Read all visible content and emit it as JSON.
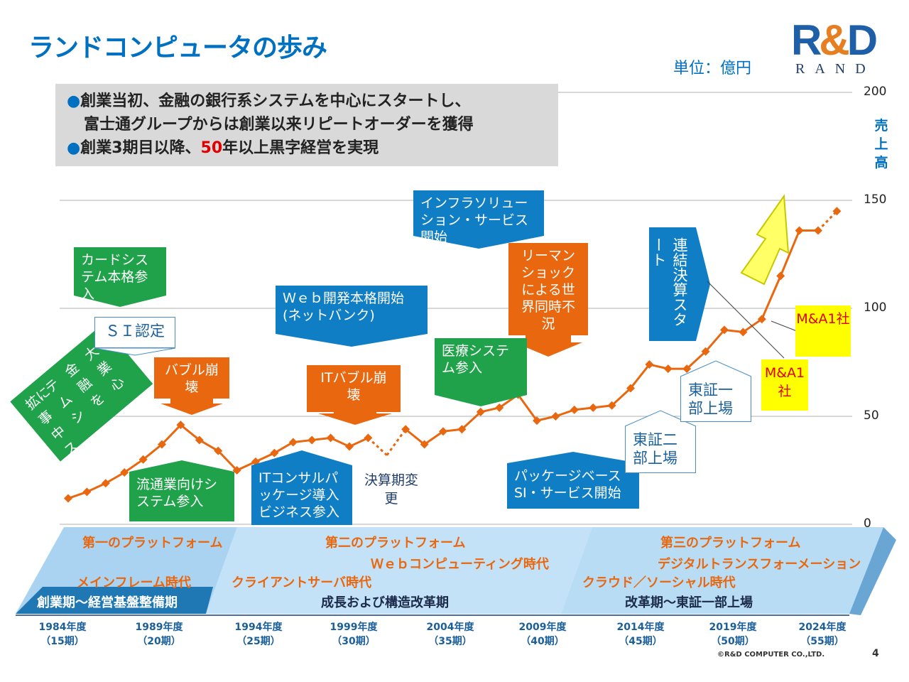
{
  "slide": {
    "title": "ランドコンピュータの歩み",
    "unit": "単位：億円",
    "logo_text": "R&D",
    "logo_sub": "RAND",
    "summary": {
      "line1": "創業当初、金融の銀行系システムを中心にスタートし、",
      "line2": "富士通グループからは創業以来リピートオーダーを獲得",
      "line3a": "創業3期目以降、",
      "line3b": "50",
      "line3c": "年以上黒字経営を実現"
    },
    "ylabel": "売上高",
    "copyright": "©R&D COMPUTER CO.,LTD.",
    "page": "4"
  },
  "callouts": {
    "finance": "拡に テ 金 大 事 ム 融 業 中 シ を 心 ス",
    "card": "カードシステム本格参入",
    "si": "ＳＩ認定",
    "bubble": "バブル崩壊",
    "retail": "流通業向けシステム参入",
    "web": "Ｗｅｂ開発本格開始(ネットバンク)",
    "it_bubble": "ITバブル崩壊",
    "consult": "ITコンサルパッケージ導入ビジネス参入",
    "fiscal": "決算期変更",
    "infra": "インフラソリューション・サービス開始",
    "medical": "医療システム参入",
    "lehman": "リーマンショックによる世界同時不況",
    "package": "パッケージベースSI・サービス開始",
    "consolidated": "連結決算スタート",
    "tse2": "東証二部上場",
    "tse1": "東証一部上場",
    "ma1": "M&A1社",
    "ma2": "M&A1社"
  },
  "eras": {
    "p1": "第一のプラットフォーム",
    "p1_sub": "メインフレーム時代",
    "p1_stage": "創業期～経営基盤整備期",
    "p2": "第二のプラットフォーム",
    "p2_web": "Ｗｅｂコンピューティング時代",
    "p2_sub": "クライアントサーバ時代",
    "p2_stage": "成長および構造改革期",
    "p3": "第三のプラットフォーム",
    "p3_dx": "デジタルトランスフォーメーション",
    "p3_sub": "クラウド／ソーシャル時代",
    "p3_stage": "改革期～東証一部上場"
  },
  "x_ticks": [
    {
      "year": "1984年度",
      "term": "（15期）"
    },
    {
      "year": "1989年度",
      "term": "（20期）"
    },
    {
      "year": "1994年度",
      "term": "（25期）"
    },
    {
      "year": "1999年度",
      "term": "（30期）"
    },
    {
      "year": "2004年度",
      "term": "（35期）"
    },
    {
      "year": "2009年度",
      "term": "（40期）"
    },
    {
      "year": "2014年度",
      "term": "（45期）"
    },
    {
      "year": "2019年度",
      "term": "（50期）"
    },
    {
      "year": "2024年度",
      "term": "（55期）"
    }
  ],
  "colors": {
    "line": "#e8670f",
    "accent": "#0070c0",
    "green": "#1fa24a",
    "orange": "#e8670f"
  },
  "chart_data": {
    "type": "line",
    "ylabel": "売上高",
    "unit": "億円",
    "ylim": [
      0,
      200
    ],
    "yticks": [
      0,
      50,
      100,
      150,
      200
    ],
    "grid": true,
    "series": [
      {
        "values": [
          {
            "x": 1984,
            "y": 12
          },
          {
            "x": 1985,
            "y": 15
          },
          {
            "x": 1986,
            "y": 19
          },
          {
            "x": 1987,
            "y": 24
          },
          {
            "x": 1988,
            "y": 30
          },
          {
            "x": 1989,
            "y": 37
          },
          {
            "x": 1990,
            "y": 46
          },
          {
            "x": 1991,
            "y": 39
          },
          {
            "x": 1992,
            "y": 34
          },
          {
            "x": 1993,
            "y": 25
          },
          {
            "x": 1994,
            "y": 29
          },
          {
            "x": 1995,
            "y": 33
          },
          {
            "x": 1996,
            "y": 38
          },
          {
            "x": 1997,
            "y": 39
          },
          {
            "x": 1998,
            "y": 40
          },
          {
            "x": 1999,
            "y": 36
          },
          {
            "x": 2000,
            "y": 40
          },
          {
            "x": 2001,
            "y": 32
          },
          {
            "x": 2002,
            "y": 44
          },
          {
            "x": 2003,
            "y": 37
          },
          {
            "x": 2004,
            "y": 43
          },
          {
            "x": 2005,
            "y": 44
          },
          {
            "x": 2006,
            "y": 52
          },
          {
            "x": 2007,
            "y": 54
          },
          {
            "x": 2008,
            "y": 60
          },
          {
            "x": 2009,
            "y": 48
          },
          {
            "x": 2010,
            "y": 50
          },
          {
            "x": 2011,
            "y": 53
          },
          {
            "x": 2012,
            "y": 54
          },
          {
            "x": 2013,
            "y": 55
          },
          {
            "x": 2014,
            "y": 63
          },
          {
            "x": 2015,
            "y": 74
          },
          {
            "x": 2016,
            "y": 72
          },
          {
            "x": 2017,
            "y": 72
          },
          {
            "x": 2018,
            "y": 80
          },
          {
            "x": 2019,
            "y": 90
          },
          {
            "x": 2020,
            "y": 89
          },
          {
            "x": 2021,
            "y": 95
          },
          {
            "x": 2022,
            "y": 115
          },
          {
            "x": 2023,
            "y": 136
          },
          {
            "x": 2024,
            "y": 136
          },
          {
            "x": 2025,
            "y": 145
          }
        ]
      }
    ]
  }
}
